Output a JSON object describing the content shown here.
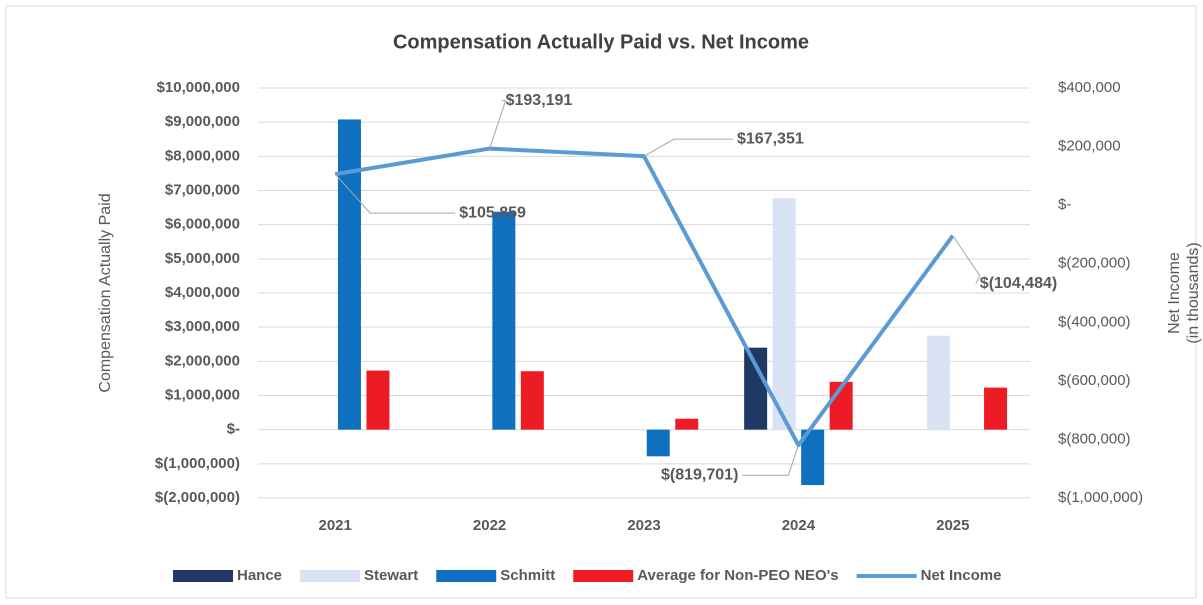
{
  "chart_data": {
    "type": "bar",
    "title": "Compensation Actually Paid vs. Net Income",
    "ylabel": "Compensation Actually Paid",
    "y2label_lines": [
      "Net Income",
      "(in thousands)"
    ],
    "categories": [
      "2021",
      "2022",
      "2023",
      "2024",
      "2025"
    ],
    "series": [
      {
        "name": "Hance",
        "color": "#1f3864",
        "values": [
          null,
          null,
          null,
          2400000,
          null
        ]
      },
      {
        "name": "Stewart",
        "color": "#dae3f3",
        "values": [
          null,
          null,
          null,
          6780000,
          2750000
        ]
      },
      {
        "name": "Schmitt",
        "color": "#1070c0",
        "values": [
          9080000,
          6380000,
          -780000,
          -1620000,
          null
        ]
      },
      {
        "name": "Average for Non-PEO NEO's",
        "color": "#ed1c24",
        "values": [
          1730000,
          1710000,
          320000,
          1400000,
          1230000
        ]
      },
      {
        "name": "Net Income",
        "type": "line",
        "axis": "y2",
        "color": "#5b9bd5",
        "values": [
          105859,
          193191,
          167351,
          -819701,
          -104484
        ],
        "value_labels": [
          "$105,859",
          "$193,191",
          "$167,351",
          "$(819,701)",
          "$(104,484)"
        ]
      }
    ],
    "ylim": [
      -2000000,
      10000000
    ],
    "yticks": [
      {
        "value": -2000000,
        "label": "$(2,000,000)"
      },
      {
        "value": -1000000,
        "label": "$(1,000,000)"
      },
      {
        "value": 0,
        "label": "$-"
      },
      {
        "value": 1000000,
        "label": "$1,000,000"
      },
      {
        "value": 2000000,
        "label": "$2,000,000"
      },
      {
        "value": 3000000,
        "label": "$3,000,000"
      },
      {
        "value": 4000000,
        "label": "$4,000,000"
      },
      {
        "value": 5000000,
        "label": "$5,000,000"
      },
      {
        "value": 6000000,
        "label": "$6,000,000"
      },
      {
        "value": 7000000,
        "label": "$7,000,000"
      },
      {
        "value": 8000000,
        "label": "$8,000,000"
      },
      {
        "value": 9000000,
        "label": "$9,000,000"
      },
      {
        "value": 10000000,
        "label": "$10,000,000"
      }
    ],
    "y2lim": [
      -1000000,
      400000
    ],
    "y2ticks": [
      {
        "value": -1000000,
        "label": "$(1,000,000)"
      },
      {
        "value": -800000,
        "label": "$(800,000)"
      },
      {
        "value": -600000,
        "label": "$(600,000)"
      },
      {
        "value": -400000,
        "label": "$(400,000)"
      },
      {
        "value": -200000,
        "label": "$(200,000)"
      },
      {
        "value": 0,
        "label": "$-"
      },
      {
        "value": 200000,
        "label": "$200,000"
      },
      {
        "value": 400000,
        "label": "$400,000"
      }
    ],
    "grid": true,
    "legend": "bottom"
  }
}
